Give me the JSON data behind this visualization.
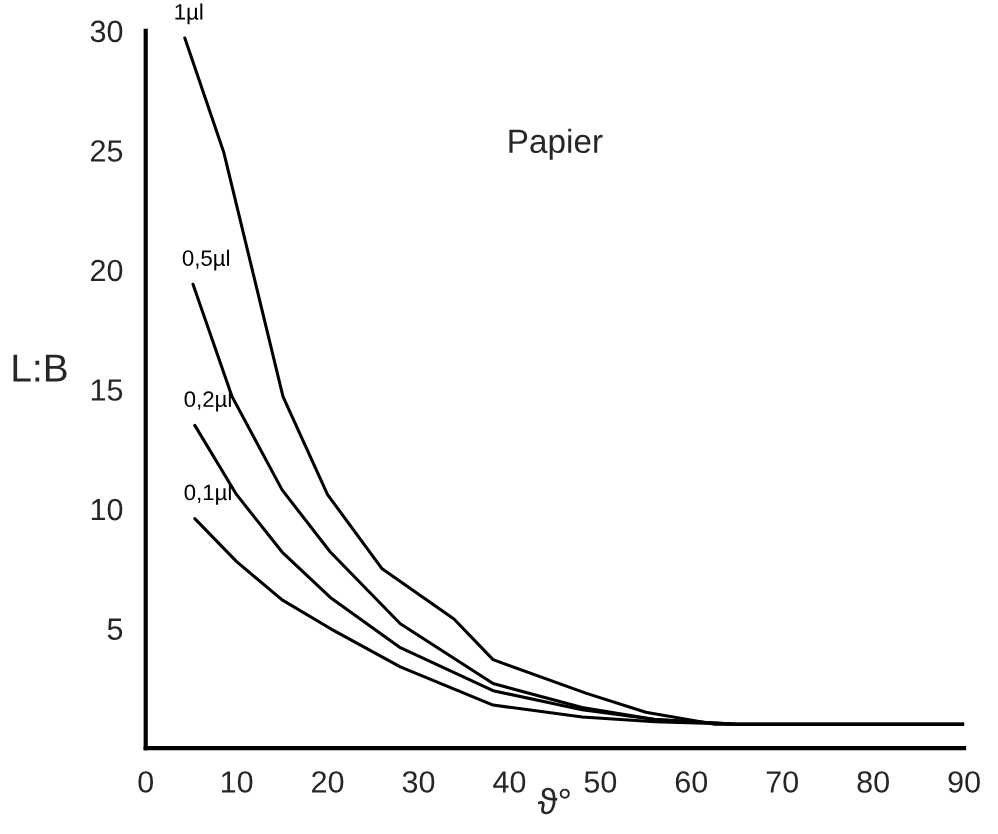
{
  "chart_data": {
    "type": "line",
    "xlabel": "ϑ°",
    "ylabel": "L:B",
    "annotations": [
      "Papier"
    ],
    "xlim": [
      0,
      90
    ],
    "ylim": [
      0,
      30
    ],
    "xticks": [
      0,
      10,
      20,
      30,
      40,
      50,
      60,
      70,
      80,
      90
    ],
    "yticks": [
      5,
      10,
      15,
      20,
      25,
      30
    ],
    "grid": false,
    "legend": false,
    "marker": "none",
    "line_style": "solid",
    "series": [
      {
        "name": "1µl",
        "color": "#000000",
        "x": [
          4.3,
          8.6,
          15.1,
          20,
          26,
          33.9,
          38.2,
          48.4,
          55,
          62.6,
          70,
          80,
          90
        ],
        "values": [
          29.7,
          24.9,
          14.7,
          10.6,
          7.5,
          5.4,
          3.7,
          2.3,
          1.5,
          1.0,
          1.0,
          1.0,
          1.0
        ]
      },
      {
        "name": "0,5µl",
        "color": "#000000",
        "x": [
          5.2,
          9.5,
          15,
          20.3,
          28,
          38.2,
          48,
          56,
          65,
          75,
          90
        ],
        "values": [
          19.4,
          14.7,
          10.8,
          8.2,
          5.2,
          2.7,
          1.7,
          1.2,
          1.0,
          1.0,
          1.0
        ]
      },
      {
        "name": "0,2µl",
        "color": "#000000",
        "x": [
          5.4,
          10,
          15,
          20.3,
          28,
          38.2,
          48,
          56,
          65,
          75,
          90
        ],
        "values": [
          13.5,
          10.6,
          8.2,
          6.3,
          4.2,
          2.4,
          1.6,
          1.2,
          1.0,
          1.0,
          1.0
        ]
      },
      {
        "name": "0,1µl",
        "color": "#000000",
        "x": [
          5.4,
          10,
          15,
          20.3,
          28,
          38.2,
          48,
          56,
          65,
          75,
          90
        ],
        "values": [
          9.6,
          7.8,
          6.2,
          5.0,
          3.4,
          1.8,
          1.3,
          1.1,
          1.0,
          1.0,
          1.0
        ]
      }
    ]
  }
}
